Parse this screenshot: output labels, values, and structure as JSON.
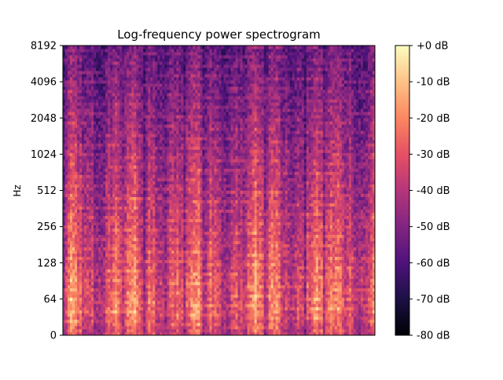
{
  "chart_data": {
    "type": "heatmap",
    "title": "Log-frequency power spectrogram",
    "xlabel": "",
    "ylabel": "Hz",
    "y_scale": "log2",
    "y_ticks": [
      "0",
      "64",
      "128",
      "256",
      "512",
      "1024",
      "2048",
      "4096",
      "8192"
    ],
    "colorbar": {
      "colormap": "magma",
      "range_db": [
        -80,
        0
      ],
      "ticks": [
        "+0 dB",
        "-10 dB",
        "-20 dB",
        "-30 dB",
        "-40 dB",
        "-50 dB",
        "-60 dB",
        "-70 dB",
        "-80 dB"
      ]
    },
    "grid": false,
    "x_ticks_shown": false
  }
}
